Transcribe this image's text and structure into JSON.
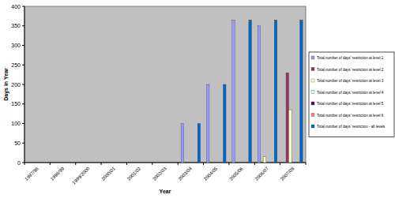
{
  "chart_data": {
    "type": "bar",
    "x_label": "Year",
    "y_label": "Days in Year",
    "categories": [
      "1997/98",
      "1998/99",
      "1999/2000",
      "2000/01",
      "2001/02",
      "2002/03",
      "2003/04",
      "2004/05",
      "2005/06",
      "2006/07",
      "2007/08"
    ],
    "series": [
      {
        "name": "Total number of days' restriction at level 1",
        "color": "#9999ff",
        "values": [
          0,
          0,
          0,
          0,
          0,
          0,
          100,
          200,
          365,
          350,
          0
        ]
      },
      {
        "name": "Total number of days' restriction at level 2",
        "color": "#993366",
        "values": [
          0,
          0,
          0,
          0,
          0,
          0,
          0,
          0,
          0,
          0,
          230
        ]
      },
      {
        "name": "Total number of days' restriction at level 3",
        "color": "#ffffcc",
        "values": [
          0,
          0,
          0,
          0,
          0,
          0,
          0,
          0,
          0,
          15,
          135
        ]
      },
      {
        "name": "Total number of days' restriction at level 4",
        "color": "#ccffff",
        "values": [
          0,
          0,
          0,
          0,
          0,
          0,
          0,
          0,
          0,
          0,
          0
        ]
      },
      {
        "name": "Total number of days' restriction at level 5",
        "color": "#660066",
        "values": [
          0,
          0,
          0,
          0,
          0,
          0,
          0,
          0,
          0,
          0,
          0
        ]
      },
      {
        "name": "Total number of days' restriction at level 6",
        "color": "#ff8080",
        "values": [
          0,
          0,
          0,
          0,
          0,
          0,
          0,
          0,
          0,
          0,
          0
        ]
      },
      {
        "name": "Total number of days' restriction - all levels",
        "color": "#0066cc",
        "values": [
          0,
          0,
          0,
          0,
          0,
          0,
          100,
          200,
          365,
          365,
          365
        ]
      }
    ],
    "ylim": [
      0,
      400
    ],
    "yticks": [
      0,
      50,
      100,
      150,
      200,
      250,
      300,
      350,
      400
    ],
    "grid": false,
    "legend": "right"
  }
}
